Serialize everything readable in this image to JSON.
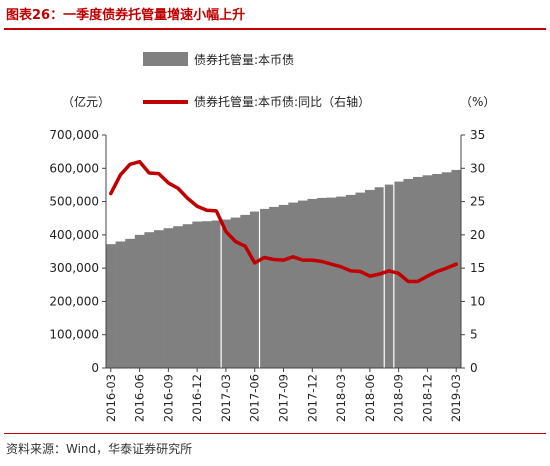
{
  "header": {
    "title": "图表26：一季度债券托管量增速小幅上升"
  },
  "footer": {
    "source": "资料来源：Wind，华泰证券研究所"
  },
  "chart_data": {
    "type": "bar+line",
    "title": "一季度债券托管量增速小幅上升",
    "legend": [
      {
        "name": "债券托管量:本币债",
        "type": "bar",
        "color": "#808080"
      },
      {
        "name": "债券托管量:本币债:同比（右轴）",
        "type": "line",
        "color": "#c00000"
      }
    ],
    "left_axis": {
      "unit": "（亿元）",
      "min": 0,
      "max": 700000,
      "ticks": [
        "700,000",
        "600,000",
        "500,000",
        "400,000",
        "300,000",
        "200,000",
        "100,000",
        "0"
      ]
    },
    "right_axis": {
      "unit": "（%）",
      "min": 0,
      "max": 35,
      "ticks": [
        "35",
        "30",
        "25",
        "20",
        "15",
        "10",
        "5",
        "0"
      ]
    },
    "x_tick_labels": [
      "2016-03",
      "2016-06",
      "2016-09",
      "2016-12",
      "2017-03",
      "2017-06",
      "2017-09",
      "2017-12",
      "2018-03",
      "2018-06",
      "2018-09",
      "2018-12",
      "2019-03"
    ],
    "x": [
      "2016-03",
      "2016-04",
      "2016-05",
      "2016-06",
      "2016-07",
      "2016-08",
      "2016-09",
      "2016-10",
      "2016-11",
      "2016-12",
      "2017-01",
      "2017-02",
      "2017-03",
      "2017-04",
      "2017-05",
      "2017-06",
      "2017-07",
      "2017-08",
      "2017-09",
      "2017-10",
      "2017-11",
      "2017-12",
      "2018-01",
      "2018-02",
      "2018-03",
      "2018-04",
      "2018-05",
      "2018-06",
      "2018-07",
      "2018-08",
      "2018-09",
      "2018-10",
      "2018-11",
      "2018-12",
      "2019-01",
      "2019-02",
      "2019-03"
    ],
    "series": [
      {
        "name": "债券托管量:本币债",
        "type": "bar",
        "values": [
          372000,
          380000,
          388000,
          400000,
          408000,
          414000,
          420000,
          426000,
          432000,
          440000,
          441000,
          443000,
          446000,
          452000,
          460000,
          470000,
          478000,
          484000,
          490000,
          497000,
          503000,
          508000,
          511000,
          512000,
          515000,
          520000,
          527000,
          535000,
          543000,
          551000,
          560000,
          568000,
          574000,
          579000,
          583000,
          588000,
          595000
        ]
      },
      {
        "name": "债券托管量:本币债:同比",
        "type": "line",
        "values": [
          26.2,
          29.0,
          30.6,
          31.0,
          29.3,
          29.2,
          27.8,
          27.0,
          25.5,
          24.3,
          23.7,
          23.6,
          20.5,
          19.0,
          18.3,
          15.8,
          16.6,
          16.3,
          16.2,
          16.7,
          16.2,
          16.2,
          16.0,
          15.6,
          15.2,
          14.6,
          14.5,
          13.8,
          14.1,
          14.6,
          14.2,
          13.0,
          13.0,
          13.8,
          14.5,
          15.0,
          15.6
        ]
      }
    ]
  }
}
